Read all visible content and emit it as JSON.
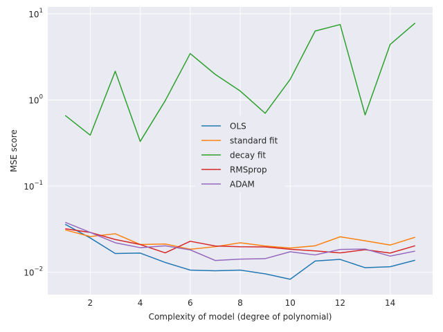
{
  "chart_data": {
    "type": "line",
    "xlabel": "Complexity of model (degree of polynomial)",
    "ylabel": "MSE score",
    "yscale": "log",
    "xlim": [
      0.3,
      15.7
    ],
    "ylim": [
      0.0055,
      12
    ],
    "grid": true,
    "legend_position": "center",
    "x": [
      1,
      2,
      3,
      4,
      5,
      6,
      7,
      8,
      9,
      10,
      11,
      12,
      13,
      14,
      15
    ],
    "x_ticks": [
      {
        "value": 2,
        "label": "2"
      },
      {
        "value": 4,
        "label": "4"
      },
      {
        "value": 6,
        "label": "6"
      },
      {
        "value": 8,
        "label": "8"
      },
      {
        "value": 10,
        "label": "10"
      },
      {
        "value": 12,
        "label": "12"
      },
      {
        "value": 14,
        "label": "14"
      }
    ],
    "y_ticks": [
      {
        "value": 0.01,
        "base": "10",
        "exp": "−2"
      },
      {
        "value": 0.1,
        "base": "10",
        "exp": "−1"
      },
      {
        "value": 1,
        "base": "10",
        "exp": "0"
      },
      {
        "value": 10,
        "base": "10",
        "exp": "1"
      }
    ],
    "series": [
      {
        "name": "OLS",
        "color": "#1f77b4",
        "values": [
          0.036,
          0.025,
          0.0165,
          0.0167,
          0.013,
          0.0106,
          0.0104,
          0.0106,
          0.0096,
          0.0083,
          0.0135,
          0.0141,
          0.0113,
          0.0116,
          0.0138
        ]
      },
      {
        "name": "standard fit",
        "color": "#ff7f0e",
        "values": [
          0.031,
          0.026,
          0.028,
          0.021,
          0.0213,
          0.0185,
          0.0198,
          0.022,
          0.0202,
          0.0191,
          0.0203,
          0.0258,
          0.0232,
          0.0207,
          0.0255
        ]
      },
      {
        "name": "decay fit",
        "color": "#2ca02c",
        "values": [
          0.66,
          0.39,
          2.15,
          0.33,
          0.98,
          3.45,
          1.98,
          1.27,
          0.7,
          1.73,
          6.3,
          7.5,
          0.67,
          4.4,
          7.8
        ]
      },
      {
        "name": "RMSprop",
        "color": "#d62728",
        "values": [
          0.032,
          0.029,
          0.024,
          0.021,
          0.0168,
          0.0229,
          0.0202,
          0.0198,
          0.0197,
          0.0185,
          0.0177,
          0.0168,
          0.0183,
          0.0167,
          0.0203
        ]
      },
      {
        "name": "ADAM",
        "color": "#9467bd",
        "values": [
          0.038,
          0.029,
          0.022,
          0.0193,
          0.0203,
          0.0182,
          0.0137,
          0.0142,
          0.0144,
          0.0173,
          0.0159,
          0.0184,
          0.0186,
          0.0154,
          0.0176
        ]
      }
    ]
  }
}
